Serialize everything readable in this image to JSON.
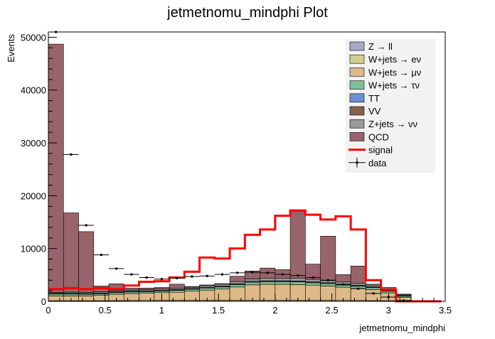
{
  "chart_data": {
    "type": "bar",
    "title": "jetmetnomu_mindphi Plot",
    "xlabel": "jetmetnomu_mindphi",
    "ylabel": "Events",
    "xlim": [
      0,
      3.5
    ],
    "ylim": [
      0,
      51000
    ],
    "x_ticks": [
      "0",
      "0.5",
      "1",
      "1.5",
      "2",
      "2.5",
      "3",
      "3.5"
    ],
    "y_ticks": [
      "0",
      "10000",
      "20000",
      "30000",
      "40000",
      "50000"
    ],
    "grid": false,
    "legend_position": "top-right",
    "bin_edges": [
      0,
      0.1333,
      0.2667,
      0.4,
      0.5333,
      0.6667,
      0.8,
      0.9333,
      1.0667,
      1.2,
      1.3333,
      1.4667,
      1.6,
      1.7333,
      1.8667,
      2.0,
      2.1333,
      2.2667,
      2.4,
      2.5333,
      2.6667,
      2.8,
      2.9333,
      3.0667,
      3.2,
      3.3333,
      3.4667
    ],
    "stacked_series": [
      {
        "name": "Z → ll",
        "color": "#a8a8c8",
        "values": [
          20,
          20,
          20,
          20,
          20,
          20,
          20,
          20,
          20,
          20,
          20,
          20,
          20,
          20,
          20,
          20,
          20,
          20,
          20,
          20,
          20,
          20,
          20,
          10,
          0,
          0
        ]
      },
      {
        "name": "W+jets → eν",
        "color": "#d2cd8c",
        "values": [
          100,
          100,
          100,
          100,
          120,
          140,
          160,
          180,
          200,
          200,
          200,
          200,
          200,
          200,
          200,
          200,
          200,
          200,
          180,
          160,
          140,
          120,
          100,
          60,
          0,
          0
        ]
      },
      {
        "name": "W+jets → μν",
        "color": "#ddb987",
        "values": [
          900,
          900,
          900,
          1000,
          1200,
          1300,
          1350,
          1450,
          1500,
          1700,
          1900,
          2100,
          2500,
          2900,
          3000,
          3000,
          2950,
          2850,
          2700,
          2500,
          2300,
          2100,
          1500,
          700,
          20,
          0
        ]
      },
      {
        "name": "W+jets → τν",
        "color": "#7dbe9b",
        "values": [
          350,
          350,
          300,
          300,
          300,
          300,
          300,
          300,
          350,
          350,
          400,
          400,
          450,
          500,
          500,
          500,
          500,
          450,
          450,
          400,
          400,
          350,
          300,
          200,
          0,
          0
        ]
      },
      {
        "name": "TT",
        "color": "#6f8fd2",
        "values": [
          30,
          30,
          30,
          30,
          30,
          30,
          30,
          30,
          30,
          30,
          30,
          30,
          30,
          30,
          30,
          30,
          30,
          30,
          30,
          30,
          30,
          30,
          30,
          20,
          0,
          0
        ]
      },
      {
        "name": "VV",
        "color": "#84614e",
        "values": [
          150,
          150,
          150,
          150,
          150,
          150,
          150,
          150,
          150,
          150,
          150,
          150,
          150,
          150,
          150,
          150,
          150,
          150,
          150,
          150,
          150,
          150,
          150,
          100,
          0,
          0
        ]
      },
      {
        "name": "Z+jets → νν",
        "color": "#9a9a9a",
        "values": [
          150,
          200,
          200,
          200,
          200,
          200,
          200,
          200,
          200,
          250,
          300,
          350,
          400,
          450,
          500,
          500,
          500,
          450,
          400,
          400,
          350,
          300,
          250,
          150,
          10,
          0
        ]
      },
      {
        "name": "QCD",
        "color": "#98636a",
        "values": [
          47000,
          15000,
          11500,
          1100,
          1300,
          350,
          300,
          300,
          800,
          100,
          100,
          100,
          1000,
          1500,
          1900,
          1600,
          12700,
          2900,
          8400,
          1400,
          3300,
          180,
          280,
          120,
          0,
          0
        ]
      }
    ],
    "line_series": [
      {
        "name": "signal",
        "color": "#ff0000",
        "values": [
          2300,
          2500,
          2300,
          2500,
          2300,
          3000,
          3700,
          3800,
          4500,
          5600,
          8300,
          8100,
          10000,
          12600,
          13600,
          16200,
          17200,
          16400,
          15500,
          16100,
          13600,
          4000,
          2200,
          0,
          0,
          0
        ]
      }
    ],
    "data_series": {
      "name": "data",
      "color": "#000000",
      "values": [
        51000,
        27800,
        14400,
        8800,
        6200,
        5100,
        4500,
        4200,
        4400,
        4700,
        4800,
        5100,
        5400,
        5500,
        5400,
        5100,
        4900,
        4500,
        4000,
        3200,
        2400,
        1500,
        800,
        150,
        0,
        0
      ]
    }
  }
}
